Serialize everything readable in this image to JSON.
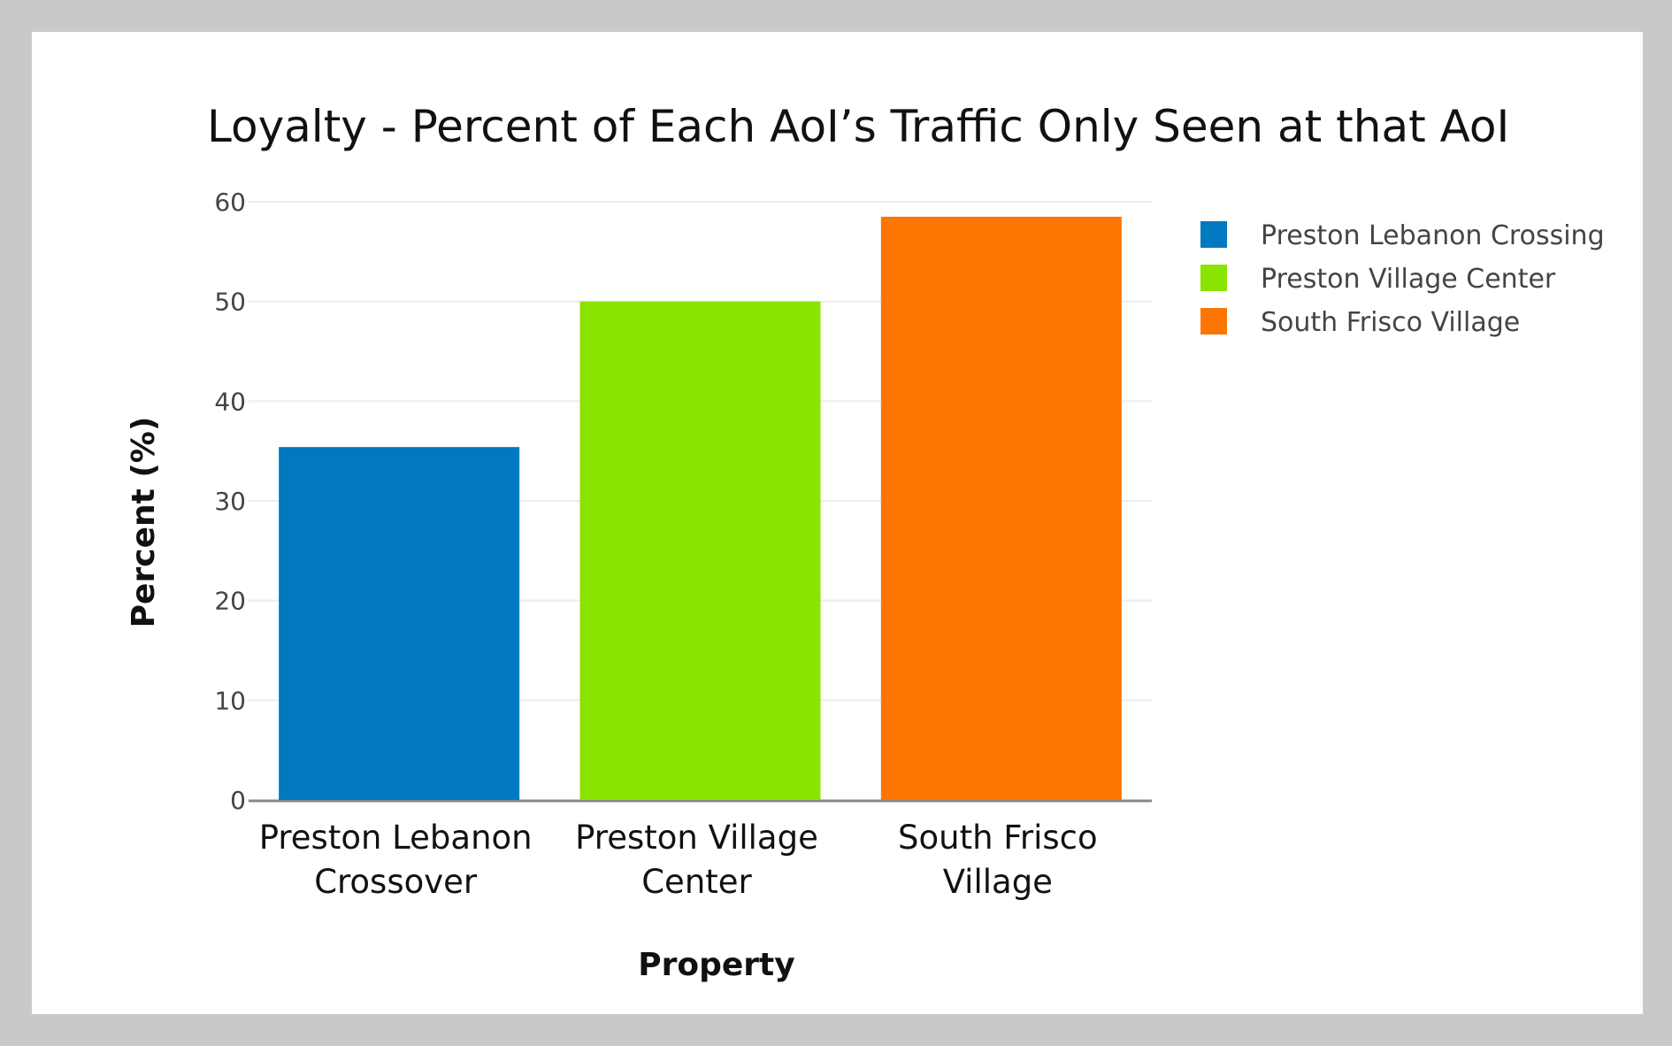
{
  "chart_data": {
    "type": "bar",
    "title": "Loyalty - Percent of Each AoI’s Traffic Only Seen at that AoI",
    "xlabel": "Property",
    "ylabel": "Percent (%)",
    "categories": [
      [
        "Preston Lebanon",
        "Crossover"
      ],
      [
        "Preston Village",
        "Center"
      ],
      [
        "South Frisco",
        "Village"
      ]
    ],
    "values": [
      35.4,
      50.0,
      58.5
    ],
    "colors": [
      "#0079c1",
      "#8be300",
      "#fd7503"
    ],
    "ylim": [
      0,
      60
    ],
    "yticks": [
      0,
      10,
      20,
      30,
      40,
      50,
      60
    ],
    "grid": true,
    "legend_position": "top-right",
    "legend": [
      {
        "label": "Preston Lebanon Crossing",
        "color": "#0079c1"
      },
      {
        "label": "Preston Village Center",
        "color": "#8be300"
      },
      {
        "label": "South Frisco Village",
        "color": "#fd7503"
      }
    ]
  }
}
